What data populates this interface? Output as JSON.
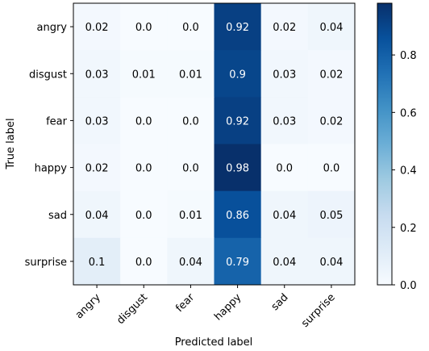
{
  "chart_data": {
    "type": "heatmap",
    "title": "",
    "xlabel": "Predicted label",
    "ylabel": "True label",
    "x_categories": [
      "angry",
      "disgust",
      "fear",
      "happy",
      "sad",
      "surprise"
    ],
    "y_categories": [
      "angry",
      "disgust",
      "fear",
      "happy",
      "sad",
      "surprise"
    ],
    "values": [
      [
        "0.02",
        "0.0",
        "0.0",
        "0.92",
        "0.02",
        "0.04"
      ],
      [
        "0.03",
        "0.01",
        "0.01",
        "0.9",
        "0.03",
        "0.02"
      ],
      [
        "0.03",
        "0.0",
        "0.0",
        "0.92",
        "0.03",
        "0.02"
      ],
      [
        "0.02",
        "0.0",
        "0.0",
        "0.98",
        "0.0",
        "0.0"
      ],
      [
        "0.04",
        "0.0",
        "0.01",
        "0.86",
        "0.04",
        "0.05"
      ],
      [
        "0.1",
        "0.0",
        "0.04",
        "0.79",
        "0.04",
        "0.04"
      ]
    ],
    "colorscale": "Blues",
    "colorbar_range": [
      0.0,
      0.98
    ],
    "colorbar_ticks": [
      "0.0",
      "0.2",
      "0.4",
      "0.6",
      "0.8"
    ],
    "grid": false
  }
}
